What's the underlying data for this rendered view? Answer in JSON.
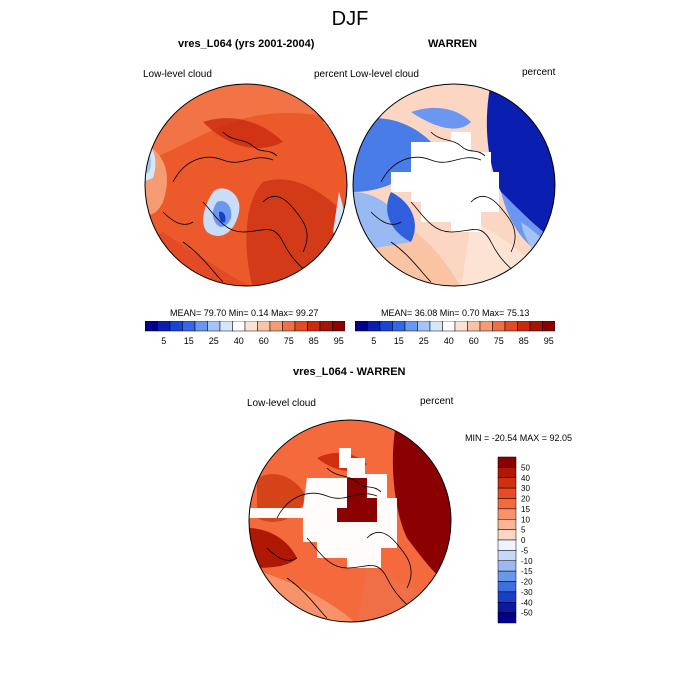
{
  "figure": {
    "title": "DJF"
  },
  "chart_data": [
    {
      "type": "heatmap",
      "title": "vres_L064 (yrs 2001-2004)",
      "left_label": "Low-level cloud",
      "right_label": "percent",
      "projection": "north polar stereographic",
      "stats": {
        "mean": "79.70",
        "min": "0.14",
        "max": "99.27"
      },
      "stats_text": "MEAN=  79.70  Min=   0.14  Max=  99.27",
      "colorbar": {
        "levels": [
          "5",
          "15",
          "25",
          "40",
          "60",
          "75",
          "85",
          "95"
        ],
        "colors": [
          "#00008b",
          "#0a1fb0",
          "#1745d6",
          "#3468e8",
          "#6b97f0",
          "#a4c3f7",
          "#d6e7fb",
          "#ffffff",
          "#fde3d4",
          "#f9c3a4",
          "#f59c74",
          "#ef6f47",
          "#e34a25",
          "#c92b10",
          "#a51503",
          "#8b0000"
        ]
      }
    },
    {
      "type": "heatmap",
      "title": "WARREN",
      "left_label": "Low-level cloud",
      "right_label": "percent",
      "projection": "north polar stereographic",
      "stats": {
        "mean": "36.08",
        "min": "0.70",
        "max": "75.13"
      },
      "stats_text": "MEAN=  36.08  Min=   0.70  Max=  75.13",
      "colorbar": {
        "levels": [
          "5",
          "15",
          "25",
          "40",
          "60",
          "75",
          "85",
          "95"
        ],
        "colors": [
          "#00008b",
          "#0a1fb0",
          "#1745d6",
          "#3468e8",
          "#6b97f0",
          "#a4c3f7",
          "#d6e7fb",
          "#ffffff",
          "#fde3d4",
          "#f9c3a4",
          "#f59c74",
          "#ef6f47",
          "#e34a25",
          "#c92b10",
          "#a51503",
          "#8b0000"
        ]
      }
    },
    {
      "type": "heatmap",
      "title": "vres_L064 - WARREN",
      "left_label": "Low-level cloud",
      "right_label": "percent",
      "projection": "north polar stereographic",
      "stats": {
        "min": "-20.54",
        "max": "92.05"
      },
      "stats_text": "MIN = -20.54 MAX =  92.05",
      "colorbar": {
        "orientation": "vertical",
        "levels": [
          "50",
          "40",
          "30",
          "20",
          "15",
          "10",
          "5",
          "0",
          "-5",
          "-10",
          "-15",
          "-20",
          "-30",
          "-40",
          "-50"
        ],
        "colors": [
          "#8b0000",
          "#b01806",
          "#d02f12",
          "#ec4a22",
          "#f56a3d",
          "#f7926a",
          "#f9b596",
          "#fbd6c3",
          "#eef4ff",
          "#c4d8f8",
          "#98b9f1",
          "#6b97ea",
          "#3f6fde",
          "#1a3fc7",
          "#0a1aa5",
          "#00008b"
        ]
      }
    }
  ]
}
